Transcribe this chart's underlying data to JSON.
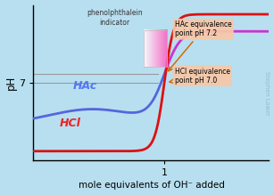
{
  "background_color": "#b8dff0",
  "xlim": [
    0,
    1.8
  ],
  "xlabel": "mole equivalents of OH⁻ added",
  "ylabel": "pH",
  "hac_label": "HAc",
  "hac_label_color": "#5577ee",
  "hcl_label": "HCl",
  "hcl_label_color": "#ee2222",
  "hac_curve_color": "#5566dd",
  "hcl_curve_color": "#dd1111",
  "mag_curve_color": "#cc33cc",
  "annotation_box_color": "#f8c8a8",
  "hac_eq_text": "HAc equivalence\npoint pH 7.2",
  "hcl_eq_text": "HCl equivalence\npoint pH 7.0",
  "arrow_color": "#dd6600",
  "phenolphthalein_text": "phenolphthalein\nindicator",
  "watermark_text": "Stephen Lower",
  "watermark_color": "#90bdd0",
  "hline_color": "#999999",
  "axis_label_fontsize": 7.5,
  "tick_fontsize": 8,
  "curve_linewidth": 2.0
}
